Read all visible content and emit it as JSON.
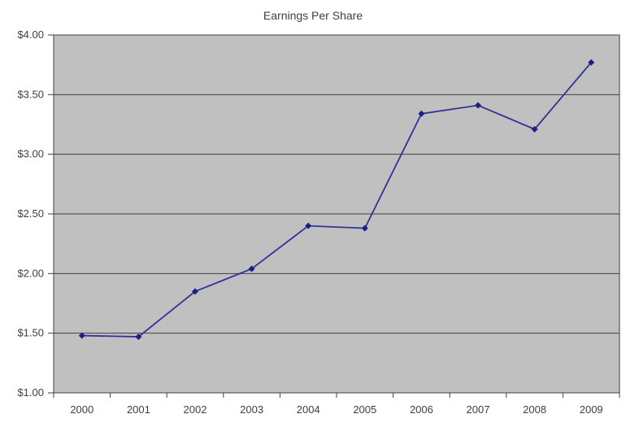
{
  "chart_data": {
    "type": "line",
    "title": "Earnings Per Share",
    "categories": [
      "2000",
      "2001",
      "2002",
      "2003",
      "2004",
      "2005",
      "2006",
      "2007",
      "2008",
      "2009"
    ],
    "series": [
      {
        "name": "Earnings Per Share",
        "values": [
          1.48,
          1.47,
          1.85,
          2.04,
          2.4,
          2.38,
          3.34,
          3.41,
          3.21,
          3.77
        ]
      }
    ],
    "ylim": [
      1.0,
      4.0
    ],
    "y_ticks": {
      "values": [
        4.0,
        3.5,
        3.0,
        2.5,
        2.0,
        1.5,
        1.0
      ],
      "labels": [
        "$4.00",
        "$3.50",
        "$3.00",
        "$2.50",
        "$2.00",
        "$1.50",
        "$1.00"
      ]
    },
    "xlabel": "",
    "ylabel": "",
    "grid": "horizontal",
    "legend": "none",
    "marker": "diamond",
    "colors": {
      "background": "#ffffff",
      "plot_bg": "#c0c0c0",
      "grid": "#404040",
      "border": "#404040",
      "line": "#32329b",
      "marker": "#1e1e82",
      "text": "#404040"
    }
  }
}
